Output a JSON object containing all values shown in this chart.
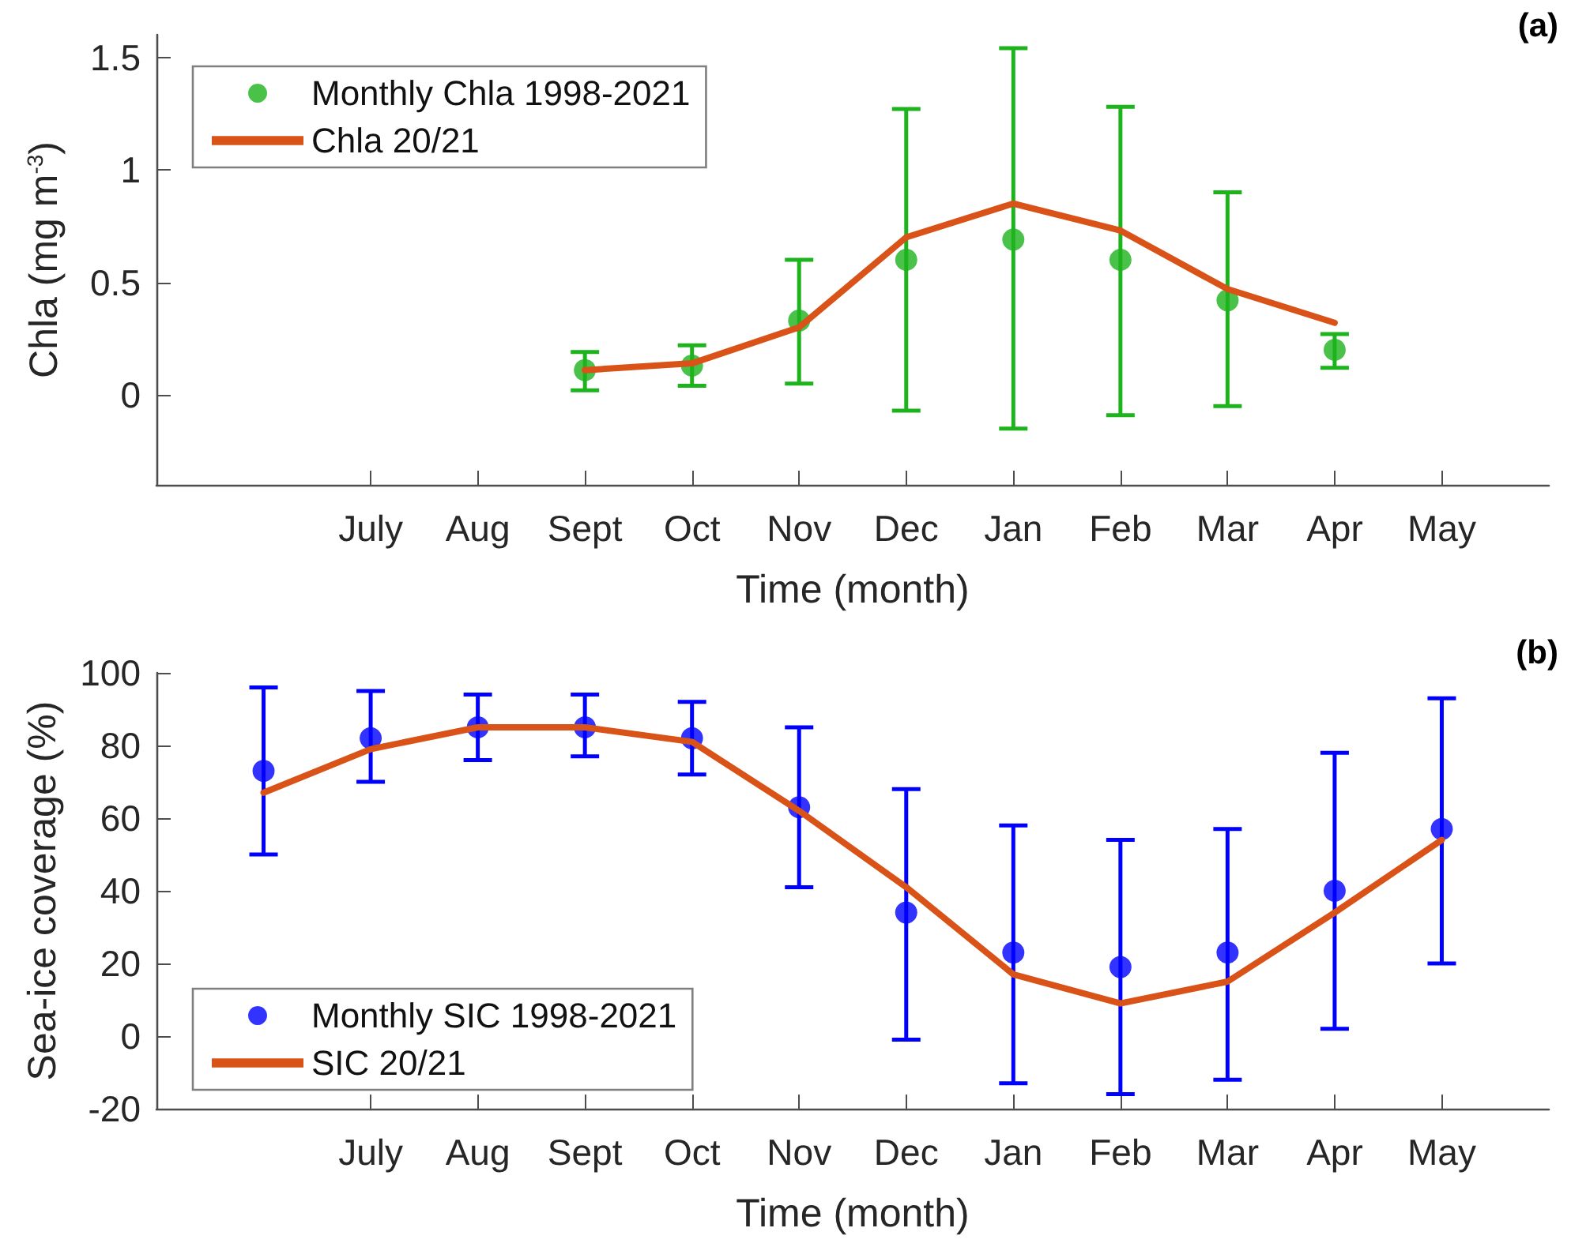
{
  "chart_data": [
    {
      "type": "line",
      "xlabel": "Time (month)",
      "ylabel": "Chla (mg m$^{-3}$)",
      "annotations": [
        "(a)"
      ],
      "categories": [
        null,
        null,
        "July",
        "Aug",
        "Sept",
        "Oct",
        "Nov",
        "Dec",
        "Jan",
        "Feb",
        "Mar",
        "Apr",
        "May",
        null
      ],
      "series": [
        {
          "name": "Monthly Chla 1998-2021",
          "type": "scatter",
          "color": "#1db31d",
          "marker": "circle",
          "values": [
            null,
            null,
            null,
            null,
            0.11,
            0.13,
            0.33,
            0.6,
            0.69,
            0.6,
            0.42,
            0.2,
            null,
            null
          ],
          "errors": [
            null,
            null,
            null,
            null,
            [
              0.02,
              0.19
            ],
            [
              0.04,
              0.22
            ],
            [
              0.05,
              0.6
            ],
            [
              -0.07,
              1.27
            ],
            [
              -0.15,
              1.54
            ],
            [
              -0.09,
              1.28
            ],
            [
              -0.05,
              0.9
            ],
            [
              0.12,
              0.27
            ],
            null,
            null
          ]
        },
        {
          "name": "Chla 20/21",
          "color": "#d95319",
          "marker": "none",
          "line_style": "solid",
          "values": [
            null,
            null,
            null,
            null,
            0.11,
            0.14,
            0.3,
            0.7,
            0.85,
            0.73,
            0.47,
            0.32,
            null,
            null
          ]
        }
      ],
      "ylim": [
        -0.4,
        1.6
      ],
      "yticks": [
        0,
        0.5,
        1,
        1.5
      ],
      "grid": false,
      "legend": "top left"
    },
    {
      "type": "line",
      "xlabel": "Time (month)",
      "ylabel": "Sea-ice coverage (%)",
      "annotations": [
        "(b)"
      ],
      "categories": [
        null,
        null,
        "July",
        "Aug",
        "Sept",
        "Oct",
        "Nov",
        "Dec",
        "Jan",
        "Feb",
        "Mar",
        "Apr",
        "May",
        null
      ],
      "series": [
        {
          "name": "Monthly SIC 1998-2021",
          "type": "scatter",
          "color": "#0000ff",
          "marker": "circle",
          "values": [
            null,
            73,
            82,
            85,
            85,
            82,
            63,
            34,
            23,
            19,
            23,
            40,
            57,
            null
          ],
          "errors": [
            null,
            [
              50,
              96
            ],
            [
              70,
              95
            ],
            [
              76,
              94
            ],
            [
              77,
              94
            ],
            [
              72,
              92
            ],
            [
              41,
              85
            ],
            [
              -1,
              68
            ],
            [
              -13,
              58
            ],
            [
              -16,
              54
            ],
            [
              -12,
              57
            ],
            [
              2,
              78
            ],
            [
              20,
              93
            ],
            null
          ]
        },
        {
          "name": "SIC 20/21",
          "color": "#d95319",
          "marker": "none",
          "line_style": "solid",
          "values": [
            null,
            67,
            79,
            85,
            85,
            81,
            62,
            41,
            17,
            9,
            15,
            34,
            54,
            null
          ]
        }
      ],
      "ylim": [
        -20,
        100
      ],
      "yticks": [
        -20,
        0,
        20,
        40,
        60,
        80,
        100
      ],
      "grid": false,
      "legend": "bottom left"
    }
  ]
}
